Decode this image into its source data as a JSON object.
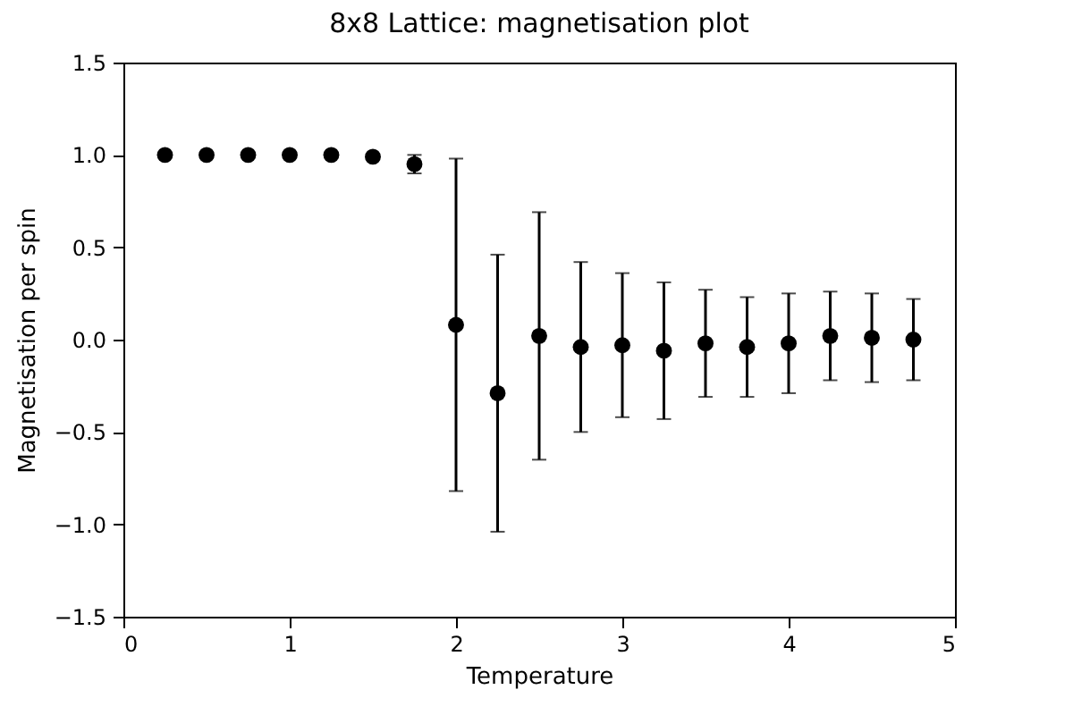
{
  "chart_data": {
    "type": "scatter",
    "title": "8x8 Lattice: magnetisation plot",
    "xlabel": "Temperature",
    "ylabel": "Magnetisation per spin",
    "x": [
      0.25,
      0.5,
      0.75,
      1.0,
      1.25,
      1.5,
      1.75,
      2.0,
      2.25,
      2.5,
      2.75,
      3.0,
      3.25,
      3.5,
      3.75,
      4.0,
      4.25,
      4.5,
      4.75
    ],
    "series": [
      {
        "color": "#000000",
        "values": [
          1.0,
          1.0,
          1.0,
          1.0,
          1.0,
          0.99,
          0.95,
          0.08,
          -0.29,
          0.02,
          -0.04,
          -0.03,
          -0.06,
          -0.02,
          -0.04,
          -0.02,
          0.02,
          0.01,
          0.0
        ],
        "errors": [
          null,
          null,
          null,
          null,
          null,
          null,
          0.05,
          0.9,
          0.75,
          0.67,
          0.46,
          0.39,
          0.37,
          0.29,
          0.27,
          0.27,
          0.24,
          0.24,
          0.22
        ]
      }
    ],
    "xlim": [
      0,
      5
    ],
    "xticks": [
      0,
      1,
      2,
      3,
      4,
      5
    ],
    "ylim": [
      -1.5,
      1.5
    ],
    "yticks": [
      {
        "value": -1.5,
        "label": "−1.5"
      },
      {
        "value": -1.0,
        "label": "−1.0"
      },
      {
        "value": -0.5,
        "label": "−0.5"
      },
      {
        "value": 0,
        "label": "0.0"
      },
      {
        "value": 0.5,
        "label": "0.5"
      },
      {
        "value": 1.0,
        "label": "1.0"
      },
      {
        "value": 1.5,
        "label": "1.5"
      }
    ],
    "marker": "circle",
    "grid": false,
    "legend": false
  }
}
